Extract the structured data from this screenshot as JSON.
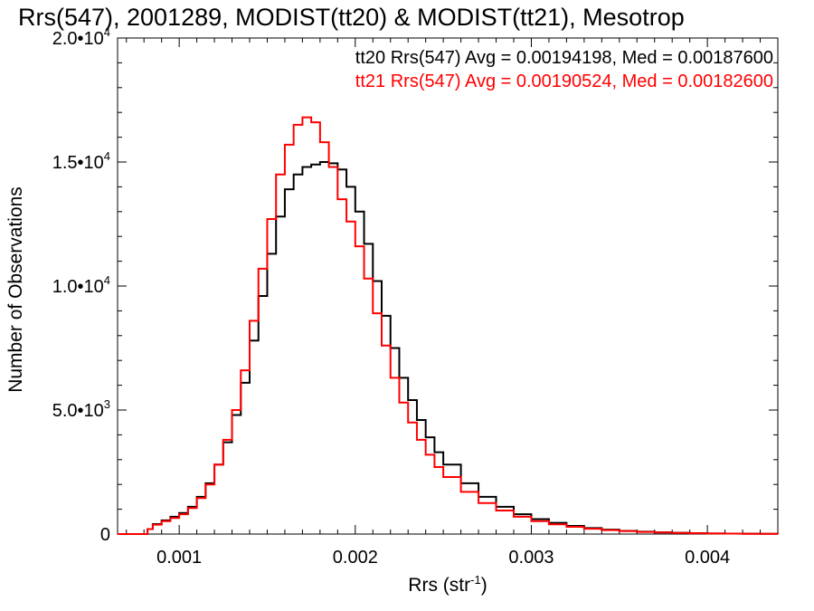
{
  "chart_data": {
    "type": "line",
    "title": "Rrs(547), 2001289, MODIST(tt20) & MODIST(tt21), Mesotrop",
    "xlabel": "Rrs (str",
    "xlabel_sup": "-1",
    "xlabel_end": ")",
    "ylabel": "Number of Observations",
    "xlim": [
      0.00065,
      0.0044
    ],
    "ylim": [
      0,
      20000
    ],
    "x_ticks": [
      {
        "value": 0.001,
        "label": "0.001"
      },
      {
        "value": 0.002,
        "label": "0.002"
      },
      {
        "value": 0.003,
        "label": "0.003"
      },
      {
        "value": 0.004,
        "label": "0.004"
      }
    ],
    "y_ticks": [
      {
        "value": 0,
        "label": "0",
        "exp": ""
      },
      {
        "value": 5000,
        "label": "5.0•10",
        "exp": "3"
      },
      {
        "value": 10000,
        "label": "1.0•10",
        "exp": "4"
      },
      {
        "value": 15000,
        "label": "1.5•10",
        "exp": "4"
      },
      {
        "value": 20000,
        "label": "2.0•10",
        "exp": "4"
      }
    ],
    "legend_position": "top-right",
    "series": [
      {
        "name": "tt20",
        "legend": "tt20 Rrs(547) Avg = 0.00194198, Med = 0.00187600",
        "color": "#000000",
        "points": [
          [
            0.00065,
            0
          ],
          [
            0.00078,
            0
          ],
          [
            0.00082,
            200
          ],
          [
            0.00085,
            400
          ],
          [
            0.0009,
            550
          ],
          [
            0.00095,
            700
          ],
          [
            0.001,
            850
          ],
          [
            0.00105,
            1100
          ],
          [
            0.0011,
            1500
          ],
          [
            0.00115,
            2050
          ],
          [
            0.0012,
            2800
          ],
          [
            0.00125,
            3700
          ],
          [
            0.0013,
            4800
          ],
          [
            0.00135,
            6100
          ],
          [
            0.0014,
            7800
          ],
          [
            0.00145,
            9600
          ],
          [
            0.0015,
            11300
          ],
          [
            0.00155,
            12800
          ],
          [
            0.0016,
            13900
          ],
          [
            0.00165,
            14500
          ],
          [
            0.0017,
            14800
          ],
          [
            0.00175,
            14900
          ],
          [
            0.0018,
            15000
          ],
          [
            0.00185,
            14950
          ],
          [
            0.0019,
            14700
          ],
          [
            0.00195,
            14000
          ],
          [
            0.002,
            13000
          ],
          [
            0.00205,
            11700
          ],
          [
            0.0021,
            10200
          ],
          [
            0.00215,
            8800
          ],
          [
            0.0022,
            7500
          ],
          [
            0.00225,
            6300
          ],
          [
            0.0023,
            5400
          ],
          [
            0.00235,
            4600
          ],
          [
            0.0024,
            3900
          ],
          [
            0.00245,
            3300
          ],
          [
            0.0025,
            2800
          ],
          [
            0.0026,
            2050
          ],
          [
            0.0027,
            1500
          ],
          [
            0.0028,
            1100
          ],
          [
            0.0029,
            800
          ],
          [
            0.003,
            600
          ],
          [
            0.0031,
            450
          ],
          [
            0.0032,
            330
          ],
          [
            0.0033,
            240
          ],
          [
            0.0034,
            180
          ],
          [
            0.0035,
            130
          ],
          [
            0.0036,
            95
          ],
          [
            0.0037,
            70
          ],
          [
            0.0038,
            50
          ],
          [
            0.0039,
            35
          ],
          [
            0.004,
            25
          ],
          [
            0.0041,
            18
          ],
          [
            0.0042,
            12
          ],
          [
            0.0043,
            8
          ],
          [
            0.0044,
            5
          ]
        ]
      },
      {
        "name": "tt21",
        "legend": "tt21 Rrs(547) Avg = 0.00190524, Med = 0.00182600",
        "color": "#ff0000",
        "points": [
          [
            0.00065,
            0
          ],
          [
            0.00078,
            0
          ],
          [
            0.00082,
            200
          ],
          [
            0.00085,
            380
          ],
          [
            0.0009,
            520
          ],
          [
            0.00095,
            650
          ],
          [
            0.001,
            800
          ],
          [
            0.00105,
            1050
          ],
          [
            0.0011,
            1450
          ],
          [
            0.00115,
            2000
          ],
          [
            0.0012,
            2800
          ],
          [
            0.00125,
            3800
          ],
          [
            0.0013,
            5000
          ],
          [
            0.00135,
            6600
          ],
          [
            0.0014,
            8600
          ],
          [
            0.00145,
            10700
          ],
          [
            0.0015,
            12700
          ],
          [
            0.00155,
            14500
          ],
          [
            0.0016,
            15700
          ],
          [
            0.00165,
            16500
          ],
          [
            0.0017,
            16800
          ],
          [
            0.00175,
            16600
          ],
          [
            0.0018,
            15800
          ],
          [
            0.00185,
            14800
          ],
          [
            0.0019,
            13500
          ],
          [
            0.00195,
            12600
          ],
          [
            0.002,
            11600
          ],
          [
            0.00205,
            10300
          ],
          [
            0.0021,
            8900
          ],
          [
            0.00215,
            7600
          ],
          [
            0.0022,
            6300
          ],
          [
            0.00225,
            5300
          ],
          [
            0.0023,
            4500
          ],
          [
            0.00235,
            3800
          ],
          [
            0.0024,
            3200
          ],
          [
            0.00245,
            2700
          ],
          [
            0.0025,
            2300
          ],
          [
            0.0026,
            1700
          ],
          [
            0.0027,
            1250
          ],
          [
            0.0028,
            950
          ],
          [
            0.0029,
            700
          ],
          [
            0.003,
            520
          ],
          [
            0.0031,
            390
          ],
          [
            0.0032,
            290
          ],
          [
            0.0033,
            215
          ],
          [
            0.0034,
            160
          ],
          [
            0.0035,
            120
          ],
          [
            0.0036,
            88
          ],
          [
            0.0037,
            65
          ],
          [
            0.0038,
            47
          ],
          [
            0.0039,
            33
          ],
          [
            0.004,
            23
          ],
          [
            0.0041,
            16
          ],
          [
            0.0042,
            11
          ],
          [
            0.0043,
            7
          ],
          [
            0.0044,
            4
          ]
        ]
      }
    ]
  }
}
